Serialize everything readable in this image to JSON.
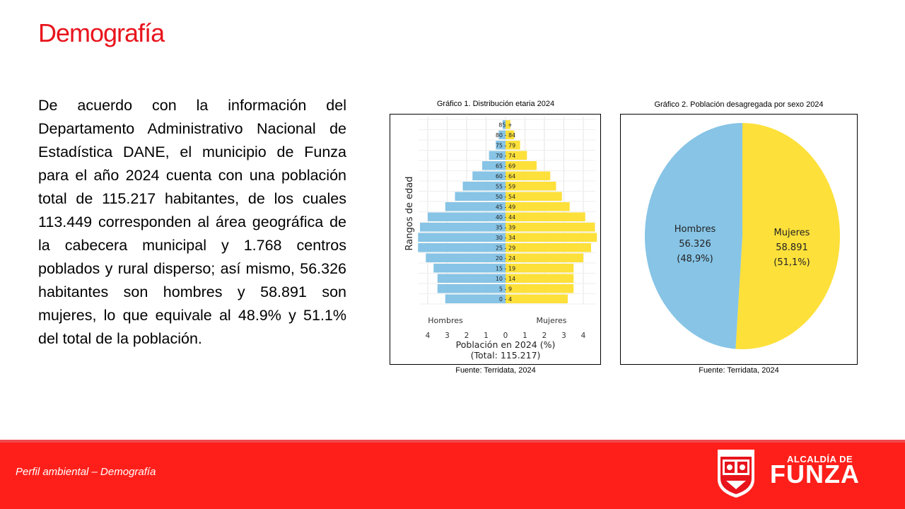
{
  "title": "Demografía",
  "body_text": "De acuerdo con la información del Departamento Administrativo Nacional de Estadística DANE, el municipio de Funza para el año 2024 cuenta con una población total de 115.217 habitantes, de los cuales 113.449 corresponden al área geográfica de la cabecera municipal y 1.768 centros poblados y rural disperso; así mismo, 56.326 habitantes son hombres y 58.891 son mujeres, lo que equivale al 48.9% y 51.1% del total de la población.",
  "charts_meta": [
    {
      "caption": "Gráfico 1. Distribución etaria 2024",
      "source": "Fuente: Terridata, 2024"
    },
    {
      "caption": "Gráfico 2. Población desagregada por sexo 2024",
      "source": "Fuente: Terridata, 2024"
    }
  ],
  "chart_data": [
    {
      "type": "bar",
      "orientation": "horizontal-population-pyramid",
      "categories": [
        "0 - 4",
        "5 - 9",
        "10 - 14",
        "15 - 19",
        "20 - 24",
        "25 - 29",
        "30 - 34",
        "35 - 39",
        "40 - 44",
        "45 - 49",
        "50 - 54",
        "55 - 59",
        "60 - 64",
        "65 - 69",
        "70 - 74",
        "75 - 79",
        "80 - 84",
        "85 +"
      ],
      "series": [
        {
          "name": "Hombres",
          "values": [
            3.1,
            3.5,
            3.5,
            3.7,
            4.1,
            4.5,
            4.5,
            4.4,
            4.0,
            3.1,
            2.6,
            2.2,
            1.7,
            1.2,
            0.85,
            0.5,
            0.35,
            0.15
          ]
        },
        {
          "name": "Mujeres",
          "values": [
            3.2,
            3.5,
            3.5,
            3.5,
            4.0,
            4.4,
            4.7,
            4.6,
            4.1,
            3.3,
            2.9,
            2.6,
            2.3,
            1.6,
            1.1,
            0.75,
            0.45,
            0.25
          ]
        }
      ],
      "ylabel": "Rangos de edad",
      "xlabel": "Población en 2024 (%)",
      "xlabel_note": "(Total: 115.217)",
      "xticks": [
        "4",
        "3",
        "2",
        "1",
        "0",
        "1",
        "2",
        "3",
        "4"
      ],
      "xlim": [
        -4.7,
        4.7
      ],
      "grid": true,
      "colors": {
        "Hombres": "#87c4e6",
        "Mujeres": "#fde03a"
      }
    },
    {
      "type": "pie",
      "categories": [
        "Mujeres",
        "Hombres"
      ],
      "values": [
        58891,
        56326
      ],
      "percent_labels": [
        "(51,1%)",
        "(48,9%)"
      ],
      "value_labels": [
        "58.891",
        "56.326"
      ],
      "colors": [
        "#fde03a",
        "#87c4e6"
      ]
    }
  ],
  "footer": {
    "text": "Perfil ambiental – Demografía"
  },
  "brand": {
    "line1": "ALCALDÍA DE",
    "line2": "FUNZA"
  }
}
